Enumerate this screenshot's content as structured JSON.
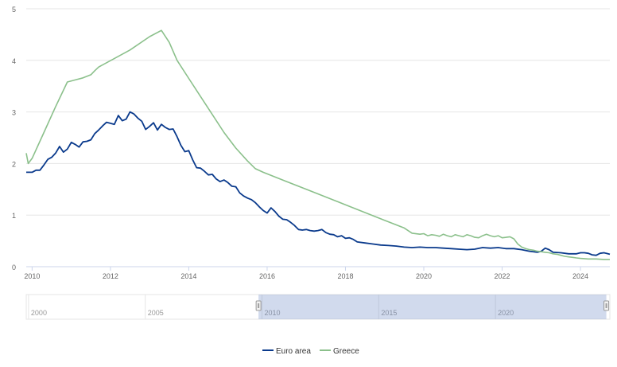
{
  "chart_data": {
    "type": "line",
    "title": "",
    "xlabel": "",
    "ylabel": "",
    "ylim": [
      0,
      5
    ],
    "y_ticks": [
      "0",
      "1",
      "2",
      "3",
      "4",
      "5"
    ],
    "x_ticks": [
      "2010",
      "2012",
      "2014",
      "2016",
      "2018",
      "2020",
      "2022",
      "2024"
    ],
    "x_tick_years": [
      2010,
      2012,
      2014,
      2016,
      2018,
      2020,
      2022,
      2024
    ],
    "xlim": [
      2009.85,
      2024.75
    ],
    "grid": true,
    "legend_position": "bottom-center",
    "series": [
      {
        "name": "Euro area",
        "color": "#0a3a8c",
        "points": [
          [
            2009.85,
            1.83
          ],
          [
            2010.0,
            1.83
          ],
          [
            2010.1,
            1.87
          ],
          [
            2010.2,
            1.87
          ],
          [
            2010.3,
            1.97
          ],
          [
            2010.4,
            2.08
          ],
          [
            2010.5,
            2.12
          ],
          [
            2010.6,
            2.2
          ],
          [
            2010.7,
            2.33
          ],
          [
            2010.8,
            2.22
          ],
          [
            2010.9,
            2.28
          ],
          [
            2011.0,
            2.41
          ],
          [
            2011.1,
            2.37
          ],
          [
            2011.2,
            2.32
          ],
          [
            2011.3,
            2.42
          ],
          [
            2011.4,
            2.43
          ],
          [
            2011.5,
            2.46
          ],
          [
            2011.6,
            2.58
          ],
          [
            2011.7,
            2.65
          ],
          [
            2011.8,
            2.73
          ],
          [
            2011.9,
            2.8
          ],
          [
            2012.0,
            2.78
          ],
          [
            2012.1,
            2.76
          ],
          [
            2012.2,
            2.93
          ],
          [
            2012.3,
            2.83
          ],
          [
            2012.4,
            2.86
          ],
          [
            2012.5,
            3.0
          ],
          [
            2012.6,
            2.96
          ],
          [
            2012.7,
            2.88
          ],
          [
            2012.8,
            2.82
          ],
          [
            2012.9,
            2.66
          ],
          [
            2013.0,
            2.72
          ],
          [
            2013.1,
            2.79
          ],
          [
            2013.2,
            2.65
          ],
          [
            2013.3,
            2.76
          ],
          [
            2013.4,
            2.7
          ],
          [
            2013.5,
            2.66
          ],
          [
            2013.6,
            2.67
          ],
          [
            2013.7,
            2.52
          ],
          [
            2013.8,
            2.35
          ],
          [
            2013.9,
            2.23
          ],
          [
            2014.0,
            2.25
          ],
          [
            2014.1,
            2.07
          ],
          [
            2014.2,
            1.92
          ],
          [
            2014.3,
            1.91
          ],
          [
            2014.4,
            1.85
          ],
          [
            2014.5,
            1.78
          ],
          [
            2014.6,
            1.79
          ],
          [
            2014.7,
            1.7
          ],
          [
            2014.8,
            1.65
          ],
          [
            2014.9,
            1.68
          ],
          [
            2015.0,
            1.63
          ],
          [
            2015.1,
            1.56
          ],
          [
            2015.2,
            1.55
          ],
          [
            2015.3,
            1.43
          ],
          [
            2015.4,
            1.37
          ],
          [
            2015.5,
            1.33
          ],
          [
            2015.6,
            1.3
          ],
          [
            2015.7,
            1.24
          ],
          [
            2015.8,
            1.16
          ],
          [
            2015.9,
            1.09
          ],
          [
            2016.0,
            1.04
          ],
          [
            2016.1,
            1.14
          ],
          [
            2016.2,
            1.07
          ],
          [
            2016.3,
            0.98
          ],
          [
            2016.4,
            0.92
          ],
          [
            2016.5,
            0.91
          ],
          [
            2016.6,
            0.86
          ],
          [
            2016.7,
            0.8
          ],
          [
            2016.8,
            0.72
          ],
          [
            2016.9,
            0.71
          ],
          [
            2017.0,
            0.72
          ],
          [
            2017.1,
            0.7
          ],
          [
            2017.2,
            0.69
          ],
          [
            2017.3,
            0.7
          ],
          [
            2017.4,
            0.72
          ],
          [
            2017.5,
            0.66
          ],
          [
            2017.6,
            0.63
          ],
          [
            2017.7,
            0.62
          ],
          [
            2017.8,
            0.58
          ],
          [
            2017.9,
            0.6
          ],
          [
            2018.0,
            0.55
          ],
          [
            2018.1,
            0.56
          ],
          [
            2018.2,
            0.53
          ],
          [
            2018.3,
            0.48
          ],
          [
            2018.5,
            0.46
          ],
          [
            2018.7,
            0.44
          ],
          [
            2018.9,
            0.42
          ],
          [
            2019.1,
            0.41
          ],
          [
            2019.3,
            0.4
          ],
          [
            2019.5,
            0.38
          ],
          [
            2019.7,
            0.37
          ],
          [
            2019.9,
            0.38
          ],
          [
            2020.1,
            0.37
          ],
          [
            2020.3,
            0.37
          ],
          [
            2020.5,
            0.36
          ],
          [
            2020.7,
            0.35
          ],
          [
            2020.9,
            0.34
          ],
          [
            2021.1,
            0.33
          ],
          [
            2021.3,
            0.34
          ],
          [
            2021.5,
            0.37
          ],
          [
            2021.7,
            0.36
          ],
          [
            2021.9,
            0.37
          ],
          [
            2022.1,
            0.35
          ],
          [
            2022.3,
            0.35
          ],
          [
            2022.5,
            0.33
          ],
          [
            2022.7,
            0.3
          ],
          [
            2022.9,
            0.28
          ],
          [
            2023.0,
            0.3
          ],
          [
            2023.1,
            0.36
          ],
          [
            2023.2,
            0.33
          ],
          [
            2023.3,
            0.28
          ],
          [
            2023.5,
            0.27
          ],
          [
            2023.7,
            0.25
          ],
          [
            2023.9,
            0.25
          ],
          [
            2024.0,
            0.27
          ],
          [
            2024.1,
            0.27
          ],
          [
            2024.2,
            0.26
          ],
          [
            2024.3,
            0.23
          ],
          [
            2024.4,
            0.22
          ],
          [
            2024.5,
            0.26
          ],
          [
            2024.6,
            0.27
          ],
          [
            2024.75,
            0.24
          ]
        ]
      },
      {
        "name": "Greece",
        "color": "#8bc08b",
        "points": [
          [
            2009.85,
            2.2
          ],
          [
            2009.9,
            2.0
          ],
          [
            2010.0,
            2.1
          ],
          [
            2010.3,
            2.6
          ],
          [
            2010.6,
            3.1
          ],
          [
            2010.9,
            3.58
          ],
          [
            2011.1,
            3.62
          ],
          [
            2011.3,
            3.66
          ],
          [
            2011.5,
            3.72
          ],
          [
            2011.6,
            3.8
          ],
          [
            2011.7,
            3.87
          ],
          [
            2012.5,
            4.2
          ],
          [
            2013.0,
            4.46
          ],
          [
            2013.3,
            4.58
          ],
          [
            2013.5,
            4.35
          ],
          [
            2013.7,
            4.0
          ],
          [
            2014.0,
            3.65
          ],
          [
            2014.3,
            3.3
          ],
          [
            2014.6,
            2.95
          ],
          [
            2014.9,
            2.6
          ],
          [
            2015.2,
            2.3
          ],
          [
            2015.5,
            2.05
          ],
          [
            2015.7,
            1.9
          ],
          [
            2015.9,
            1.83
          ],
          [
            2016.5,
            1.65
          ],
          [
            2017.0,
            1.5
          ],
          [
            2017.5,
            1.35
          ],
          [
            2018.0,
            1.2
          ],
          [
            2018.5,
            1.05
          ],
          [
            2019.0,
            0.9
          ],
          [
            2019.5,
            0.75
          ],
          [
            2019.7,
            0.65
          ],
          [
            2019.9,
            0.63
          ],
          [
            2020.0,
            0.64
          ],
          [
            2020.1,
            0.6
          ],
          [
            2020.2,
            0.62
          ],
          [
            2020.3,
            0.61
          ],
          [
            2020.4,
            0.59
          ],
          [
            2020.5,
            0.63
          ],
          [
            2020.6,
            0.6
          ],
          [
            2020.7,
            0.58
          ],
          [
            2020.8,
            0.62
          ],
          [
            2020.9,
            0.6
          ],
          [
            2021.0,
            0.58
          ],
          [
            2021.1,
            0.62
          ],
          [
            2021.2,
            0.6
          ],
          [
            2021.3,
            0.57
          ],
          [
            2021.4,
            0.56
          ],
          [
            2021.5,
            0.6
          ],
          [
            2021.6,
            0.63
          ],
          [
            2021.7,
            0.6
          ],
          [
            2021.8,
            0.58
          ],
          [
            2021.9,
            0.6
          ],
          [
            2022.0,
            0.56
          ],
          [
            2022.1,
            0.57
          ],
          [
            2022.2,
            0.58
          ],
          [
            2022.3,
            0.54
          ],
          [
            2022.4,
            0.44
          ],
          [
            2022.5,
            0.38
          ],
          [
            2022.6,
            0.35
          ],
          [
            2022.7,
            0.33
          ],
          [
            2022.8,
            0.32
          ],
          [
            2022.9,
            0.3
          ],
          [
            2023.0,
            0.29
          ],
          [
            2023.1,
            0.28
          ],
          [
            2023.2,
            0.27
          ],
          [
            2023.3,
            0.25
          ],
          [
            2023.4,
            0.24
          ],
          [
            2023.5,
            0.22
          ],
          [
            2023.6,
            0.2
          ],
          [
            2023.7,
            0.19
          ],
          [
            2023.8,
            0.18
          ],
          [
            2023.9,
            0.17
          ],
          [
            2024.0,
            0.16
          ],
          [
            2024.2,
            0.15
          ],
          [
            2024.4,
            0.15
          ],
          [
            2024.6,
            0.14
          ],
          [
            2024.75,
            0.14
          ]
        ]
      }
    ]
  },
  "navigator": {
    "labels": [
      "2000",
      "2005",
      "2010",
      "2015",
      "2020"
    ],
    "label_years": [
      2000,
      2005,
      2010,
      2015,
      2020
    ],
    "range_years": [
      1999.9,
      2024.9
    ],
    "selected_years": [
      2009.85,
      2024.75
    ]
  },
  "legend": {
    "items": [
      {
        "label": "Euro area",
        "color": "#0a3a8c"
      },
      {
        "label": "Greece",
        "color": "#8bc08b"
      }
    ]
  }
}
